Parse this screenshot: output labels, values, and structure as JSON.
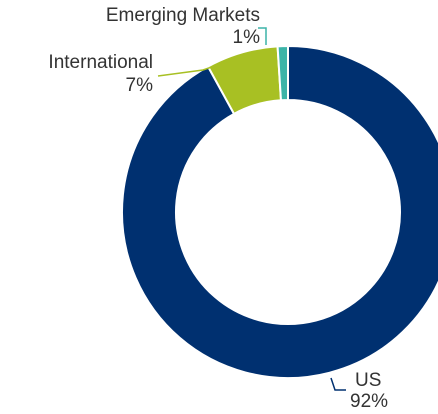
{
  "chart_data": {
    "type": "pie",
    "categories": [
      "US",
      "International",
      "Emerging Markets"
    ],
    "values": [
      92,
      7,
      1
    ],
    "value_labels": [
      "92%",
      "7%",
      "1%"
    ],
    "colors": [
      "#003070",
      "#a8c023",
      "#3cb4a8"
    ]
  }
}
